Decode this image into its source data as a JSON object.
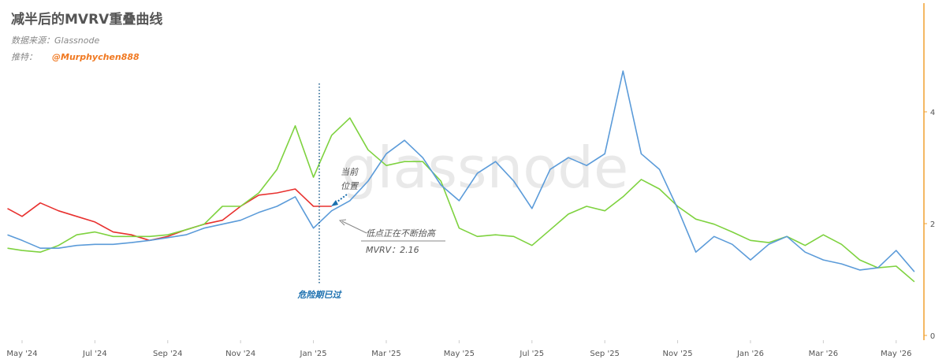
{
  "chart_data": {
    "type": "line",
    "title": "减半后的MVRV重叠曲线",
    "source": "数据来源：Glassnode",
    "twitter_label": "推特：",
    "twitter_handle": "@Murphychen888",
    "watermark": "glassnode",
    "annotations": {
      "current_1": "当前",
      "current_2": "位置",
      "lows": "低点正在不断抬高",
      "mvrv": "MVRV：2.16",
      "danger": "危险期已过"
    },
    "x": [
      -0.4,
      0,
      0.5,
      1,
      1.5,
      2,
      2.5,
      3,
      3.5,
      4,
      4.5,
      5,
      5.5,
      6,
      6.5,
      7,
      7.5,
      8,
      8.5,
      9,
      9.5,
      10,
      10.5,
      11,
      11.5,
      12,
      12.5,
      13,
      13.5,
      14,
      14.5,
      15,
      15.5,
      16,
      16.5,
      17,
      17.5,
      18,
      18.5,
      19,
      19.5,
      20,
      20.5,
      21,
      21.5,
      22,
      22.5,
      23,
      23.5,
      24,
      24.5
    ],
    "series": [
      {
        "color": "#e8312f",
        "values": [
          2.27,
          2.13,
          2.37,
          2.23,
          2.13,
          2.03,
          1.85,
          1.8,
          1.7,
          1.77,
          1.89,
          1.99,
          2.06,
          2.31,
          2.51,
          2.55,
          2.62,
          2.31,
          2.31,
          null,
          null,
          null,
          null,
          null,
          null,
          null,
          null,
          null,
          null,
          null,
          null,
          null,
          null,
          null,
          null,
          null,
          null,
          null,
          null,
          null,
          null,
          null,
          null,
          null,
          null,
          null,
          null,
          null,
          null,
          null,
          null
        ]
      },
      {
        "color": "#7ed23f",
        "values": [
          1.56,
          1.52,
          1.49,
          1.61,
          1.8,
          1.85,
          1.77,
          1.77,
          1.77,
          1.8,
          1.89,
          1.99,
          2.31,
          2.31,
          2.55,
          2.97,
          3.75,
          2.83,
          3.58,
          3.89,
          3.32,
          3.04,
          3.11,
          3.11,
          2.76,
          1.92,
          1.77,
          1.8,
          1.77,
          1.61,
          1.89,
          2.17,
          2.31,
          2.23,
          2.48,
          2.79,
          2.62,
          2.31,
          2.08,
          1.99,
          1.85,
          1.7,
          1.66,
          1.77,
          1.61,
          1.8,
          1.63,
          1.35,
          1.21,
          1.24,
          0.96
        ]
      },
      {
        "color": "#5b9bd9",
        "values": [
          1.8,
          1.7,
          1.56,
          1.56,
          1.61,
          1.63,
          1.63,
          1.66,
          1.7,
          1.75,
          1.8,
          1.92,
          1.99,
          2.06,
          2.2,
          2.31,
          2.48,
          1.92,
          2.23,
          2.41,
          2.76,
          3.25,
          3.49,
          3.18,
          2.69,
          2.41,
          2.9,
          3.11,
          2.76,
          2.27,
          2.97,
          3.18,
          3.04,
          3.25,
          4.73,
          3.25,
          2.97,
          2.27,
          1.49,
          1.77,
          1.63,
          1.35,
          1.63,
          1.77,
          1.49,
          1.35,
          1.28,
          1.17,
          1.21,
          1.52,
          1.14
        ]
      }
    ],
    "xlim": [
      -0.4,
      24.6
    ],
    "xticks": [
      {
        "value": 0,
        "label": "May '24"
      },
      {
        "value": 2,
        "label": "Jul '24"
      },
      {
        "value": 4,
        "label": "Sep '24"
      },
      {
        "value": 6,
        "label": "Nov '24"
      },
      {
        "value": 8,
        "label": "Jan '25"
      },
      {
        "value": 10,
        "label": "Mar '25"
      },
      {
        "value": 12,
        "label": "May '25"
      },
      {
        "value": 14,
        "label": "Jul '25"
      },
      {
        "value": 16,
        "label": "Sep '25"
      },
      {
        "value": 18,
        "label": "Nov '25"
      },
      {
        "value": 20,
        "label": "Jan '26"
      },
      {
        "value": 22,
        "label": "Mar '26"
      },
      {
        "value": 24,
        "label": "May '26"
      }
    ],
    "ylim": [
      0,
      6
    ],
    "yticks": [
      0,
      2,
      4
    ],
    "axis_color": "#f0a030"
  }
}
